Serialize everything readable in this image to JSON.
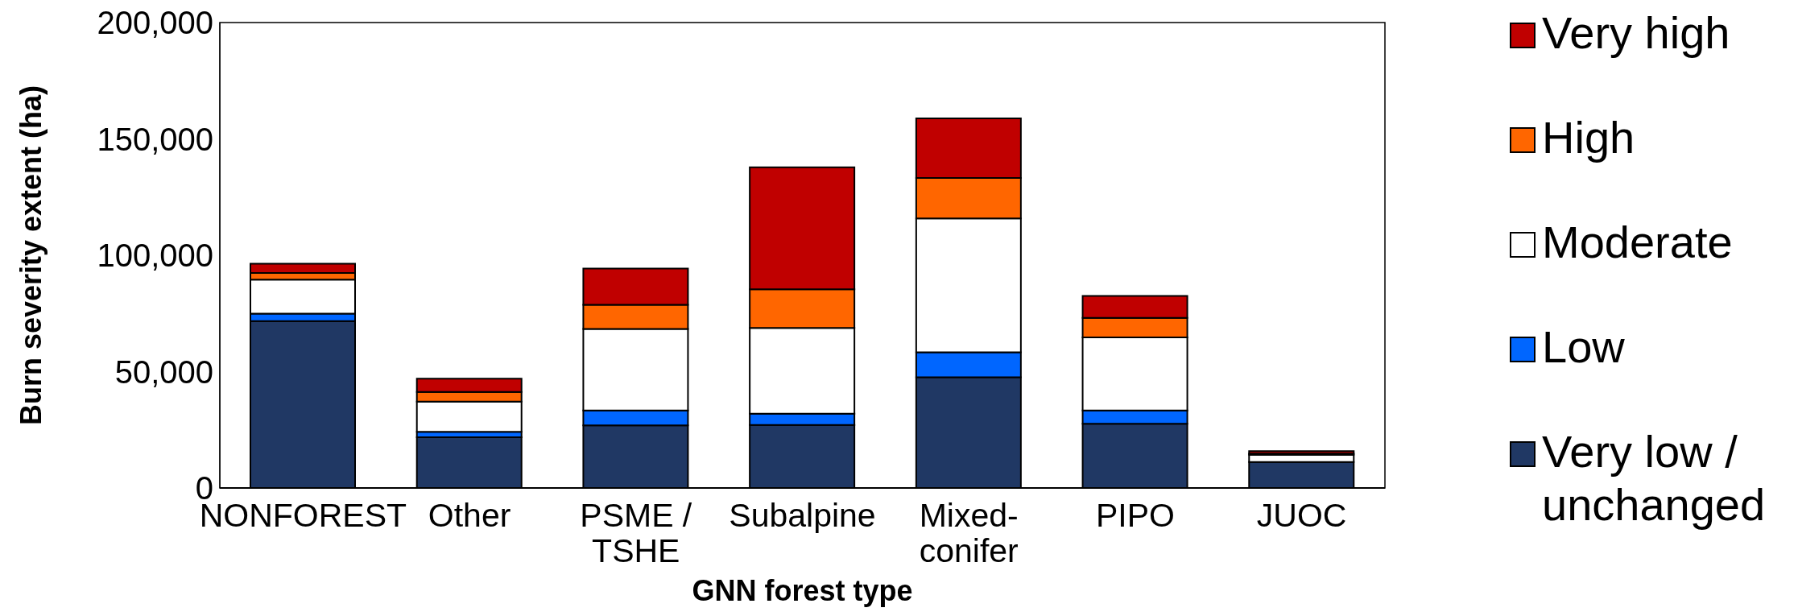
{
  "chart_data": {
    "type": "bar",
    "stacked": true,
    "xlabel": "GNN forest type",
    "ylabel": "Burn severity extent (ha)",
    "categories": [
      "NONFOREST",
      "Other",
      "PSME / TSHE",
      "Subalpine",
      "Mixed-conifer",
      "PIPO",
      "JUOC"
    ],
    "series": [
      {
        "name": "Very low / unchanged",
        "color": "#203864",
        "values": [
          71700,
          21800,
          26900,
          27100,
          47600,
          27600,
          11200
        ]
      },
      {
        "name": "Low",
        "color": "#0066ff",
        "values": [
          3200,
          2300,
          6400,
          4800,
          10700,
          5700,
          null
        ]
      },
      {
        "name": "Moderate",
        "color": "#ffffff",
        "values": [
          14600,
          13000,
          35000,
          36900,
          57500,
          31400,
          3100
        ]
      },
      {
        "name": "High",
        "color": "#ff6600",
        "values": [
          2900,
          4200,
          10400,
          16600,
          17400,
          8400,
          500
        ]
      },
      {
        "name": "Very high",
        "color": "#c00000",
        "values": [
          4000,
          5700,
          15600,
          52400,
          25600,
          9400,
          1000
        ]
      }
    ],
    "ylim": [
      0,
      200000
    ],
    "yticks": [
      {
        "value": 0,
        "label": "0"
      },
      {
        "value": 50000,
        "label": "50,000"
      },
      {
        "value": 100000,
        "label": "100,000"
      },
      {
        "value": 150000,
        "label": "150,000"
      },
      {
        "value": 200000,
        "label": "200,000"
      }
    ],
    "grid": false,
    "legend": "right"
  }
}
